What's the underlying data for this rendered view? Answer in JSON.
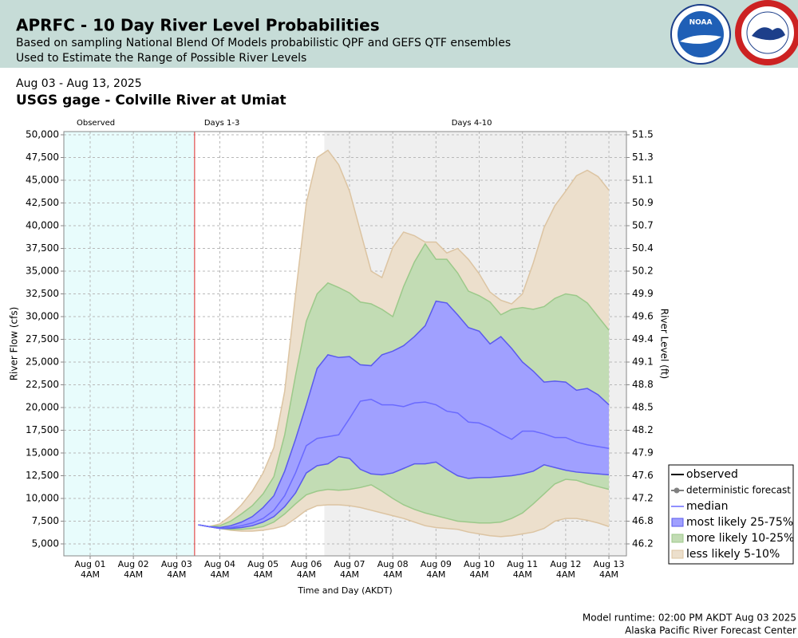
{
  "header": {
    "title": "APRFC - 10 Day River Level Probabilities",
    "lines": [
      "Based on sampling National Blend Of Models probabilistic QPF and GEFS QTF ensembles",
      "Used to Estimate the Range of Possible River Levels"
    ],
    "logo_text": "NOAA"
  },
  "chart_data": {
    "type": "band",
    "subtitle": "Aug 03 - Aug 13, 2025",
    "title": "USGS gage - Colville River at Umiat",
    "x_label": "Time and Day (AKDT)",
    "y_label": "River Flow (cfs)",
    "y2_label": "River Level (ft)",
    "regions": [
      {
        "label": "Observed",
        "color": "#e8fcfc"
      },
      {
        "label": "Days 1-3",
        "color": "#ffffff"
      },
      {
        "label": "Days 4-10",
        "color": "#efefef"
      }
    ],
    "region_breaks": [
      3.583,
      6.583
    ],
    "xlim": [
      0.558,
      13.572
    ],
    "xticks": [
      {
        "value": 1.1667,
        "label": "Aug 01 4AM"
      },
      {
        "value": 2.1667,
        "label": "Aug 02 4AM"
      },
      {
        "value": 3.1667,
        "label": "Aug 03 4AM"
      },
      {
        "value": 4.1667,
        "label": "Aug 04 4AM"
      },
      {
        "value": 5.1667,
        "label": "Aug 05 4AM"
      },
      {
        "value": 6.1667,
        "label": "Aug 06 4AM"
      },
      {
        "value": 7.1667,
        "label": "Aug 07 4AM"
      },
      {
        "value": 8.1667,
        "label": "Aug 08 4AM"
      },
      {
        "value": 9.1667,
        "label": "Aug 09 4AM"
      },
      {
        "value": 10.1667,
        "label": "Aug 10 4AM"
      },
      {
        "value": 11.1667,
        "label": "Aug 11 4AM"
      },
      {
        "value": 12.1667,
        "label": "Aug 12 4AM"
      },
      {
        "value": 13.1667,
        "label": "Aug 13 4AM"
      }
    ],
    "ylim": [
      3684,
      50350
    ],
    "yticks": [
      {
        "value": 5000,
        "label": "5,000"
      },
      {
        "value": 7500,
        "label": "7,500"
      },
      {
        "value": 10000,
        "label": "10,000"
      },
      {
        "value": 12500,
        "label": "12,500"
      },
      {
        "value": 15000,
        "label": "15,000"
      },
      {
        "value": 17500,
        "label": "17,500"
      },
      {
        "value": 20000,
        "label": "20,000"
      },
      {
        "value": 22500,
        "label": "22,500"
      },
      {
        "value": 25000,
        "label": "25,000"
      },
      {
        "value": 27500,
        "label": "27,500"
      },
      {
        "value": 30000,
        "label": "30,000"
      },
      {
        "value": 32500,
        "label": "32,500"
      },
      {
        "value": 35000,
        "label": "35,000"
      },
      {
        "value": 37500,
        "label": "37,500"
      },
      {
        "value": 40000,
        "label": "40,000"
      },
      {
        "value": 42500,
        "label": "42,500"
      },
      {
        "value": 45000,
        "label": "45,000"
      },
      {
        "value": 47500,
        "label": "47,500"
      },
      {
        "value": 50000,
        "label": "50,000"
      }
    ],
    "y2ticks": [
      46.2,
      46.8,
      47.2,
      47.6,
      47.9,
      48.2,
      48.5,
      48.8,
      49.1,
      49.4,
      49.6,
      49.9,
      50.2,
      50.4,
      50.7,
      50.9,
      51.1,
      51.3,
      51.5
    ],
    "grid": true,
    "x": [
      3.667,
      3.917,
      4.167,
      4.417,
      4.667,
      4.917,
      5.167,
      5.417,
      5.667,
      5.917,
      6.167,
      6.417,
      6.667,
      6.917,
      7.167,
      7.417,
      7.667,
      7.917,
      8.167,
      8.417,
      8.667,
      8.917,
      9.167,
      9.417,
      9.667,
      9.917,
      10.167,
      10.417,
      10.667,
      10.917,
      11.167,
      11.417,
      11.667,
      11.917,
      12.167,
      12.417,
      12.667,
      12.917,
      13.167
    ],
    "series": [
      {
        "name": "observed",
        "color": "#000000"
      },
      {
        "name": "deterministic forecast",
        "color": "#808080",
        "marker": true
      },
      {
        "name": "median",
        "color": "#6a6aff",
        "values": [
          7100,
          6900,
          6700,
          6800,
          7000,
          7300,
          7800,
          8700,
          10300,
          12800,
          15800,
          16600,
          16800,
          17000,
          18800,
          20700,
          20900,
          20300,
          20300,
          20100,
          20500,
          20600,
          20300,
          19600,
          19400,
          18400,
          18300,
          17800,
          17100,
          16500,
          17400,
          17400,
          17100,
          16700,
          16700,
          16200,
          15900,
          15700,
          15500
        ]
      },
      {
        "name": "most likely 25-75%",
        "color": "#a0a0ff",
        "edge": "#5a5aee",
        "lower": [
          7100,
          6900,
          6700,
          6700,
          6800,
          7000,
          7400,
          8000,
          9100,
          10600,
          12800,
          13600,
          13800,
          14600,
          14400,
          13200,
          12700,
          12600,
          12800,
          13300,
          13800,
          13800,
          14000,
          13200,
          12500,
          12200,
          12300,
          12300,
          12400,
          12500,
          12700,
          13000,
          13700,
          13400,
          13100,
          12900,
          12800,
          12700,
          12600
        ],
        "upper": [
          7100,
          6900,
          6800,
          7000,
          7400,
          8000,
          9000,
          10300,
          13000,
          16500,
          20300,
          24300,
          25800,
          25500,
          25600,
          24700,
          24600,
          25800,
          26200,
          26800,
          27800,
          29000,
          31700,
          31500,
          30200,
          28800,
          28400,
          27000,
          27800,
          26500,
          25000,
          24000,
          22800,
          22900,
          22800,
          21900,
          22100,
          21400,
          20300
        ]
      },
      {
        "name": "more likely 10-25%",
        "color": "#c2dcb4",
        "edge": "#9cc98a",
        "lower": [
          7100,
          6900,
          6700,
          6600,
          6600,
          6700,
          6900,
          7400,
          8300,
          9400,
          10400,
          10800,
          11000,
          10900,
          11000,
          11200,
          11500,
          10800,
          10000,
          9300,
          8800,
          8400,
          8100,
          7800,
          7500,
          7400,
          7300,
          7300,
          7400,
          7800,
          8400,
          9400,
          10500,
          11600,
          12100,
          12000,
          11600,
          11300,
          11000
        ],
        "upper": [
          7100,
          6900,
          7000,
          7500,
          8300,
          9200,
          10500,
          12400,
          17000,
          23500,
          29500,
          32500,
          33700,
          33200,
          32600,
          31600,
          31400,
          30800,
          30000,
          33300,
          36000,
          38000,
          36300,
          36300,
          34800,
          32800,
          32300,
          31600,
          30200,
          30800,
          31000,
          30800,
          31100,
          32000,
          32500,
          32300,
          31500,
          30000,
          28500
        ]
      },
      {
        "name": "less likely 5-10%",
        "color": "#ecdfcc",
        "edge": "#dcc4a2",
        "lower": [
          7100,
          6900,
          6700,
          6500,
          6400,
          6400,
          6500,
          6700,
          7000,
          7800,
          8700,
          9200,
          9300,
          9300,
          9200,
          9000,
          8700,
          8400,
          8100,
          7800,
          7400,
          7000,
          6800,
          6700,
          6600,
          6300,
          6100,
          5900,
          5800,
          5900,
          6100,
          6300,
          6700,
          7500,
          7800,
          7800,
          7600,
          7300,
          6900
        ],
        "upper": [
          7100,
          6900,
          7200,
          8100,
          9300,
          10800,
          12800,
          15600,
          21800,
          32400,
          42500,
          47500,
          48300,
          46700,
          43800,
          39400,
          35000,
          34300,
          37600,
          39300,
          38900,
          38200,
          38200,
          37000,
          37500,
          36300,
          34700,
          32700,
          31800,
          31400,
          32500,
          35900,
          39800,
          42200,
          43800,
          45500,
          46100,
          45400,
          43900
        ]
      }
    ]
  },
  "footer": [
    "Model runtime: 02:00 PM AKDT Aug 03 2025",
    "Alaska Pacific River Forecast Center"
  ]
}
